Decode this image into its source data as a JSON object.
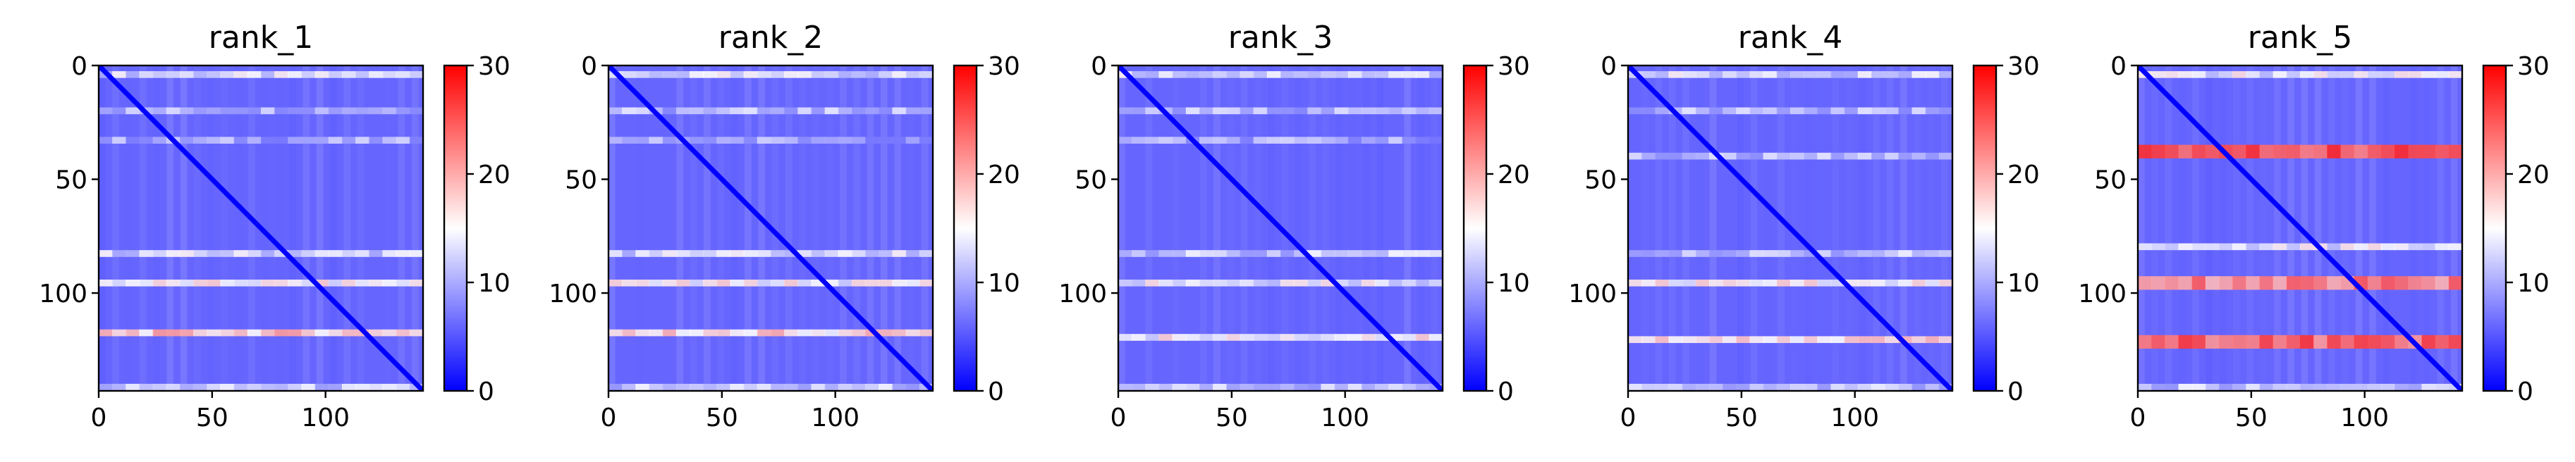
{
  "chart_data": [
    {
      "type": "heatmap",
      "title": "rank_1",
      "matrix_size": 143,
      "x_ticks": [
        0,
        50,
        100
      ],
      "y_ticks": [
        0,
        50,
        100
      ],
      "xlim": [
        0,
        143
      ],
      "ylim": [
        143,
        0
      ],
      "colorbar": {
        "colormap": "bwr",
        "range": [
          0,
          30
        ],
        "ticks": [
          0,
          10,
          20,
          30
        ]
      },
      "bands": [
        {
          "row": 4,
          "value": 13
        },
        {
          "row": 20,
          "value": 11
        },
        {
          "row": 33,
          "value": 10
        },
        {
          "row": 83,
          "value": 13
        },
        {
          "row": 96,
          "value": 15
        },
        {
          "row": 118,
          "value": 18
        },
        {
          "row": 142,
          "value": 12
        }
      ]
    },
    {
      "type": "heatmap",
      "title": "rank_2",
      "matrix_size": 143,
      "x_ticks": [
        0,
        50,
        100
      ],
      "y_ticks": [
        0,
        50,
        100
      ],
      "xlim": [
        0,
        143
      ],
      "ylim": [
        143,
        0
      ],
      "colorbar": {
        "colormap": "bwr",
        "range": [
          0,
          30
        ],
        "ticks": [
          0,
          10,
          20,
          30
        ]
      },
      "bands": [
        {
          "row": 4,
          "value": 13
        },
        {
          "row": 20,
          "value": 11
        },
        {
          "row": 33,
          "value": 10
        },
        {
          "row": 83,
          "value": 13
        },
        {
          "row": 96,
          "value": 15
        },
        {
          "row": 118,
          "value": 17
        },
        {
          "row": 142,
          "value": 12
        }
      ]
    },
    {
      "type": "heatmap",
      "title": "rank_3",
      "matrix_size": 143,
      "x_ticks": [
        0,
        50,
        100
      ],
      "y_ticks": [
        0,
        50,
        100
      ],
      "xlim": [
        0,
        143
      ],
      "ylim": [
        143,
        0
      ],
      "colorbar": {
        "colormap": "bwr",
        "range": [
          0,
          30
        ],
        "ticks": [
          0,
          10,
          20,
          30
        ]
      },
      "bands": [
        {
          "row": 4,
          "value": 13
        },
        {
          "row": 20,
          "value": 11
        },
        {
          "row": 33,
          "value": 10
        },
        {
          "row": 83,
          "value": 12
        },
        {
          "row": 96,
          "value": 14
        },
        {
          "row": 120,
          "value": 15
        },
        {
          "row": 142,
          "value": 12
        }
      ]
    },
    {
      "type": "heatmap",
      "title": "rank_4",
      "matrix_size": 143,
      "x_ticks": [
        0,
        50,
        100
      ],
      "y_ticks": [
        0,
        50,
        100
      ],
      "xlim": [
        0,
        143
      ],
      "ylim": [
        143,
        0
      ],
      "colorbar": {
        "colormap": "bwr",
        "range": [
          0,
          30
        ],
        "ticks": [
          0,
          10,
          20,
          30
        ]
      },
      "bands": [
        {
          "row": 4,
          "value": 13
        },
        {
          "row": 20,
          "value": 11
        },
        {
          "row": 40,
          "value": 11
        },
        {
          "row": 83,
          "value": 12
        },
        {
          "row": 96,
          "value": 15
        },
        {
          "row": 121,
          "value": 17
        },
        {
          "row": 142,
          "value": 12
        }
      ]
    },
    {
      "type": "heatmap",
      "title": "rank_5",
      "matrix_size": 143,
      "x_ticks": [
        0,
        50,
        100
      ],
      "y_ticks": [
        0,
        50,
        100
      ],
      "xlim": [
        0,
        143
      ],
      "ylim": [
        143,
        0
      ],
      "colorbar": {
        "colormap": "bwr",
        "range": [
          0,
          30
        ],
        "ticks": [
          0,
          10,
          20,
          30
        ]
      },
      "bands": [
        {
          "row": 4,
          "value": 14
        },
        {
          "row": 38,
          "value": 25
        },
        {
          "row": 80,
          "value": 14
        },
        {
          "row": 96,
          "value": 22
        },
        {
          "row": 122,
          "value": 24
        },
        {
          "row": 142,
          "value": 12
        }
      ]
    }
  ]
}
